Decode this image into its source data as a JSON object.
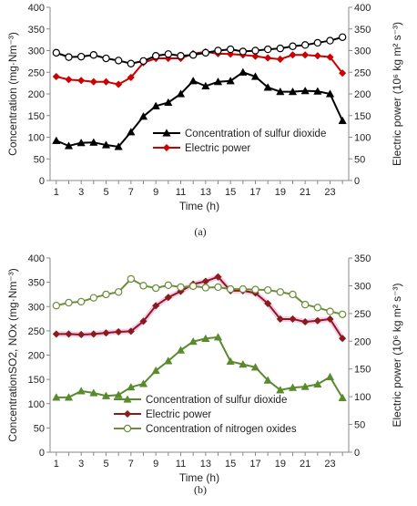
{
  "chart_data": [
    {
      "type": "line",
      "panel_label": "(a)",
      "x": [
        1,
        2,
        3,
        4,
        5,
        6,
        7,
        8,
        9,
        10,
        11,
        12,
        13,
        14,
        15,
        16,
        17,
        18,
        19,
        20,
        21,
        22,
        23,
        24
      ],
      "xticks": [
        1,
        3,
        5,
        7,
        9,
        11,
        13,
        15,
        17,
        19,
        21,
        23
      ],
      "xlabel": "Time (h)",
      "ylabel_left": "Concentration (mg·Nm⁻³)",
      "ylabel_right": "Electric  power (10⁶ kg m² s⁻³)",
      "ylim_left": [
        0,
        400
      ],
      "yticks_left": [
        0,
        50,
        100,
        150,
        200,
        250,
        300,
        350,
        400
      ],
      "ylim_right": [
        0,
        400
      ],
      "yticks_right": [
        0,
        50,
        100,
        150,
        200,
        250,
        300,
        350,
        400
      ],
      "legend_position": "bottom-right",
      "series": [
        {
          "name": "Concentration of sulfur dioxide",
          "axis": "left",
          "color": "#000000",
          "marker": "triangle",
          "values": [
            92,
            80,
            87,
            88,
            82,
            78,
            112,
            148,
            172,
            180,
            200,
            230,
            218,
            228,
            230,
            250,
            240,
            215,
            205,
            205,
            207,
            206,
            200,
            138
          ]
        },
        {
          "name": "Electric power",
          "axis": "left",
          "color": "#cc0000",
          "marker": "diamond",
          "values": [
            240,
            233,
            231,
            228,
            228,
            222,
            238,
            272,
            282,
            282,
            282,
            293,
            297,
            293,
            292,
            290,
            287,
            283,
            280,
            290,
            290,
            288,
            285,
            248
          ]
        },
        {
          "name": "",
          "axis": "right",
          "color": "#000000",
          "marker": "open-circle",
          "values": [
            295,
            285,
            286,
            290,
            282,
            277,
            270,
            276,
            288,
            292,
            288,
            290,
            295,
            300,
            303,
            298,
            300,
            303,
            305,
            310,
            313,
            318,
            323,
            331
          ]
        }
      ]
    },
    {
      "type": "line",
      "panel_label": "(b)",
      "x": [
        1,
        2,
        3,
        4,
        5,
        6,
        7,
        8,
        9,
        10,
        11,
        12,
        13,
        14,
        15,
        16,
        17,
        18,
        19,
        20,
        21,
        22,
        23,
        24
      ],
      "xticks": [
        1,
        3,
        5,
        7,
        9,
        11,
        13,
        15,
        17,
        19,
        21,
        23
      ],
      "xlabel": "Time (h)",
      "ylabel_left": "ConcentrationSO2, NOx  (mg·Nm⁻³)",
      "ylabel_right": "Electric power (10⁶ kg m² s⁻³)",
      "ylim_left": [
        0,
        400
      ],
      "yticks_left": [
        0,
        50,
        100,
        150,
        200,
        250,
        300,
        350,
        400
      ],
      "ylim_right": [
        0,
        350
      ],
      "yticks_right": [
        0,
        50,
        100,
        150,
        200,
        250,
        300,
        350
      ],
      "legend_position": "bottom-right",
      "series": [
        {
          "name": "Concentration of sulfur dioxide",
          "axis": "left",
          "color": "#5a8a2e",
          "marker": "triangle",
          "values": [
            113,
            113,
            126,
            122,
            116,
            118,
            134,
            141,
            168,
            188,
            210,
            228,
            234,
            237,
            187,
            181,
            175,
            148,
            128,
            133,
            135,
            140,
            155,
            112
          ]
        },
        {
          "name": "Electric power",
          "axis": "right",
          "color": "#8b1a1a",
          "marker": "diamond",
          "values": [
            213,
            213,
            212,
            213,
            215,
            217,
            218,
            236,
            264,
            279,
            290,
            303,
            308,
            316,
            291,
            291,
            287,
            268,
            240,
            240,
            235,
            237,
            240,
            205
          ]
        },
        {
          "name": "Concentration of nitrogen oxides",
          "axis": "left",
          "color": "#6b8e3a",
          "marker": "open-circle",
          "values": [
            302,
            308,
            310,
            318,
            325,
            330,
            357,
            343,
            338,
            344,
            340,
            342,
            339,
            340,
            336,
            336,
            335,
            334,
            330,
            325,
            304,
            298,
            290,
            284
          ]
        }
      ]
    }
  ]
}
